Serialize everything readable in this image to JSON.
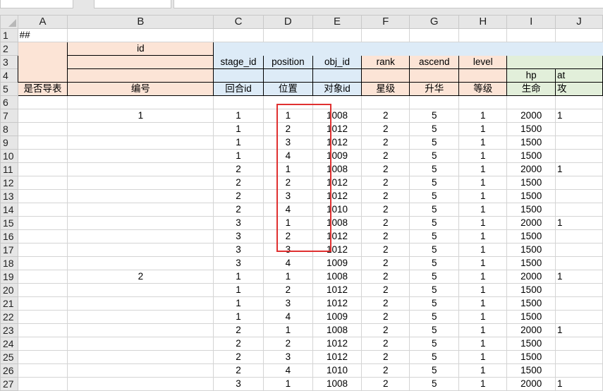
{
  "columns": [
    "A",
    "B",
    "C",
    "D",
    "E",
    "F",
    "G",
    "H",
    "I",
    "J"
  ],
  "header": {
    "r1": {
      "row": "1",
      "a": "##"
    },
    "r2": {
      "row": "2",
      "b": "id"
    },
    "r3": {
      "row": "3",
      "c": "stage_id",
      "d": "position",
      "e": "obj_id",
      "f": "rank",
      "g": "ascend",
      "h": "level"
    },
    "r4": {
      "row": "4",
      "i": "hp",
      "j": "at"
    },
    "r5": {
      "row": "5",
      "a": "是否导表",
      "b": "编号",
      "c": "回合id",
      "d": "位置",
      "e": "对象id",
      "f": "星级",
      "g": "升华",
      "h": "等级",
      "i": "生命",
      "j": "攻"
    },
    "r6": {
      "row": "6"
    }
  },
  "rows": [
    {
      "row": "7",
      "cells": [
        "",
        "1",
        "1",
        "1",
        "1008",
        "2",
        "5",
        "1",
        "2000",
        "1"
      ]
    },
    {
      "row": "8",
      "cells": [
        "",
        "",
        "1",
        "2",
        "1012",
        "2",
        "5",
        "1",
        "1500",
        ""
      ]
    },
    {
      "row": "9",
      "cells": [
        "",
        "",
        "1",
        "3",
        "1012",
        "2",
        "5",
        "1",
        "1500",
        ""
      ]
    },
    {
      "row": "10",
      "cells": [
        "",
        "",
        "1",
        "4",
        "1009",
        "2",
        "5",
        "1",
        "1500",
        ""
      ]
    },
    {
      "row": "11",
      "cells": [
        "",
        "",
        "2",
        "1",
        "1008",
        "2",
        "5",
        "1",
        "2000",
        "1"
      ]
    },
    {
      "row": "12",
      "cells": [
        "",
        "",
        "2",
        "2",
        "1012",
        "2",
        "5",
        "1",
        "1500",
        ""
      ]
    },
    {
      "row": "13",
      "cells": [
        "",
        "",
        "2",
        "3",
        "1012",
        "2",
        "5",
        "1",
        "1500",
        ""
      ]
    },
    {
      "row": "14",
      "cells": [
        "",
        "",
        "2",
        "4",
        "1010",
        "2",
        "5",
        "1",
        "1500",
        ""
      ]
    },
    {
      "row": "15",
      "cells": [
        "",
        "",
        "3",
        "1",
        "1008",
        "2",
        "5",
        "1",
        "2000",
        "1"
      ]
    },
    {
      "row": "16",
      "cells": [
        "",
        "",
        "3",
        "2",
        "1012",
        "2",
        "5",
        "1",
        "1500",
        ""
      ]
    },
    {
      "row": "17",
      "cells": [
        "",
        "",
        "3",
        "3",
        "1012",
        "2",
        "5",
        "1",
        "1500",
        ""
      ]
    },
    {
      "row": "18",
      "cells": [
        "",
        "",
        "3",
        "4",
        "1009",
        "2",
        "5",
        "1",
        "1500",
        ""
      ]
    },
    {
      "row": "19",
      "cells": [
        "",
        "2",
        "1",
        "1",
        "1008",
        "2",
        "5",
        "1",
        "2000",
        "1"
      ]
    },
    {
      "row": "20",
      "cells": [
        "",
        "",
        "1",
        "2",
        "1012",
        "2",
        "5",
        "1",
        "1500",
        ""
      ]
    },
    {
      "row": "21",
      "cells": [
        "",
        "",
        "1",
        "3",
        "1012",
        "2",
        "5",
        "1",
        "1500",
        ""
      ]
    },
    {
      "row": "22",
      "cells": [
        "",
        "",
        "1",
        "4",
        "1009",
        "2",
        "5",
        "1",
        "1500",
        ""
      ]
    },
    {
      "row": "23",
      "cells": [
        "",
        "",
        "2",
        "1",
        "1008",
        "2",
        "5",
        "1",
        "2000",
        "1"
      ]
    },
    {
      "row": "24",
      "cells": [
        "",
        "",
        "2",
        "2",
        "1012",
        "2",
        "5",
        "1",
        "1500",
        ""
      ]
    },
    {
      "row": "25",
      "cells": [
        "",
        "",
        "2",
        "3",
        "1012",
        "2",
        "5",
        "1",
        "1500",
        ""
      ]
    },
    {
      "row": "26",
      "cells": [
        "",
        "",
        "2",
        "4",
        "1010",
        "2",
        "5",
        "1",
        "1500",
        ""
      ]
    },
    {
      "row": "27",
      "cells": [
        "",
        "",
        "3",
        "1",
        "1008",
        "2",
        "5",
        "1",
        "2000",
        "1"
      ]
    }
  ],
  "colors": {
    "salmon": "#fce4d6",
    "blue": "#ddebf7",
    "green": "#e2efda",
    "highlight": "#e03030"
  }
}
